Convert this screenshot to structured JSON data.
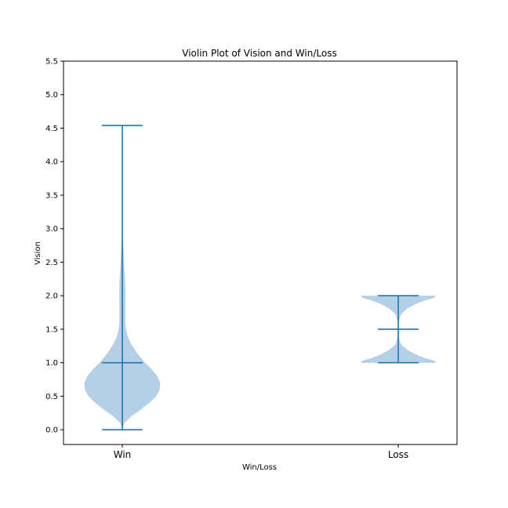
{
  "chart_data": {
    "type": "violin",
    "title": "Violin Plot of Vision and Win/Loss",
    "xlabel": "Win/Loss",
    "ylabel": "Vision",
    "categories": [
      "Win",
      "Loss"
    ],
    "ylim": [
      -0.22,
      5.5
    ],
    "yticks": [
      "0.0",
      "0.5",
      "1.0",
      "1.5",
      "2.0",
      "2.5",
      "3.0",
      "3.5",
      "4.0",
      "4.5",
      "5.0",
      "5.5"
    ],
    "color": "#1f77b4",
    "fill_color": "#a6c8e3",
    "series": [
      {
        "category": "Win",
        "min": 0.0,
        "median": 1.0,
        "max": 4.54,
        "density": [
          [
            0.0,
            0.0
          ],
          [
            0.1,
            0.05
          ],
          [
            0.2,
            0.22
          ],
          [
            0.3,
            0.45
          ],
          [
            0.4,
            0.66
          ],
          [
            0.5,
            0.83
          ],
          [
            0.6,
            0.92
          ],
          [
            0.7,
            0.93
          ],
          [
            0.8,
            0.86
          ],
          [
            0.9,
            0.72
          ],
          [
            1.0,
            0.56
          ],
          [
            1.1,
            0.42
          ],
          [
            1.2,
            0.3
          ],
          [
            1.3,
            0.2
          ],
          [
            1.4,
            0.13
          ],
          [
            1.5,
            0.09
          ],
          [
            1.6,
            0.07
          ],
          [
            1.8,
            0.07
          ],
          [
            2.0,
            0.075
          ],
          [
            2.2,
            0.07
          ],
          [
            2.4,
            0.05
          ],
          [
            2.6,
            0.035
          ],
          [
            2.8,
            0.02
          ],
          [
            3.0,
            0.005
          ],
          [
            3.1,
            0.0
          ]
        ]
      },
      {
        "category": "Loss",
        "min": 1.0,
        "median": 1.5,
        "max": 2.0,
        "density": [
          [
            1.0,
            0.93
          ],
          [
            1.03,
            0.88
          ],
          [
            1.07,
            0.66
          ],
          [
            1.12,
            0.44
          ],
          [
            1.18,
            0.25
          ],
          [
            1.25,
            0.11
          ],
          [
            1.3,
            0.05
          ],
          [
            1.4,
            0.015
          ],
          [
            1.5,
            0.01
          ],
          [
            1.6,
            0.015
          ],
          [
            1.7,
            0.05
          ],
          [
            1.75,
            0.11
          ],
          [
            1.82,
            0.25
          ],
          [
            1.88,
            0.44
          ],
          [
            1.93,
            0.66
          ],
          [
            1.97,
            0.88
          ],
          [
            2.0,
            0.93
          ]
        ]
      }
    ]
  }
}
